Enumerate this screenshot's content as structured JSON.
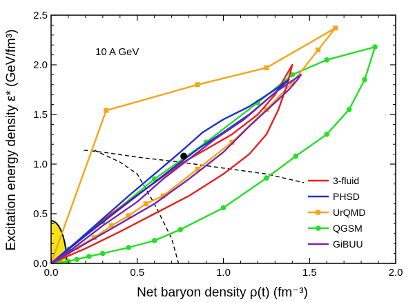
{
  "chart_data": {
    "type": "line",
    "annotation": "10 A GeV",
    "xlabel": "Net baryon density ρ(t) (fm⁻³)",
    "ylabel": "Excitation energy density ε* (GeV/fm³)",
    "xlim": [
      0.0,
      2.0
    ],
    "ylim": [
      0.0,
      2.5
    ],
    "x_ticks": [
      "0.0",
      "0.5",
      "1.0",
      "1.5",
      "2.0"
    ],
    "y_ticks": [
      "0.0",
      "0.5",
      "1.0",
      "1.5",
      "2.0",
      "2.5"
    ],
    "grid": false,
    "legend_position": "lower-right",
    "series": [
      {
        "name": "3-fluid",
        "color": "#e8211c",
        "marker": "none",
        "points": [
          [
            0.0,
            0.0
          ],
          [
            0.2,
            0.15
          ],
          [
            0.4,
            0.32
          ],
          [
            0.6,
            0.5
          ],
          [
            0.8,
            0.68
          ],
          [
            1.0,
            0.9
          ],
          [
            1.15,
            1.1
          ],
          [
            1.25,
            1.3
          ],
          [
            1.32,
            1.55
          ],
          [
            1.37,
            1.8
          ],
          [
            1.4,
            2.0
          ],
          [
            1.3,
            1.7
          ],
          [
            1.2,
            1.5
          ],
          [
            1.05,
            1.3
          ],
          [
            0.9,
            1.15
          ],
          [
            0.75,
            1.0
          ],
          [
            0.55,
            0.75
          ],
          [
            0.35,
            0.5
          ],
          [
            0.15,
            0.22
          ],
          [
            0.0,
            0.0
          ]
        ]
      },
      {
        "name": "PHSD",
        "color": "#1c2fd6",
        "marker": "none",
        "points": [
          [
            0.0,
            0.0
          ],
          [
            0.15,
            0.22
          ],
          [
            0.3,
            0.45
          ],
          [
            0.45,
            0.68
          ],
          [
            0.6,
            0.9
          ],
          [
            0.75,
            1.12
          ],
          [
            0.88,
            1.32
          ],
          [
            1.0,
            1.45
          ],
          [
            1.15,
            1.58
          ],
          [
            1.3,
            1.75
          ],
          [
            1.38,
            1.85
          ],
          [
            1.3,
            1.72
          ],
          [
            1.15,
            1.5
          ],
          [
            1.0,
            1.32
          ],
          [
            0.85,
            1.15
          ],
          [
            0.7,
            0.95
          ],
          [
            0.55,
            0.75
          ],
          [
            0.4,
            0.55
          ],
          [
            0.2,
            0.28
          ],
          [
            0.0,
            0.0
          ]
        ]
      },
      {
        "name": "UrQMD",
        "color": "#f5a516",
        "marker": "square",
        "points": [
          [
            0.0,
            0.0
          ],
          [
            0.05,
            0.05
          ],
          [
            0.1,
            0.1
          ],
          [
            0.15,
            0.16
          ],
          [
            0.25,
            0.26
          ],
          [
            0.35,
            0.38
          ],
          [
            0.45,
            0.48
          ],
          [
            0.55,
            0.6
          ],
          [
            0.65,
            0.68
          ],
          [
            0.85,
            0.95
          ],
          [
            1.05,
            1.22
          ],
          [
            1.25,
            1.55
          ],
          [
            1.4,
            1.82
          ],
          [
            1.55,
            2.15
          ],
          [
            1.65,
            2.37
          ],
          [
            1.25,
            1.97
          ],
          [
            0.85,
            1.8
          ],
          [
            0.32,
            1.54
          ],
          [
            0.0,
            0.0
          ]
        ]
      },
      {
        "name": "QGSM",
        "color": "#22e022",
        "marker": "circle",
        "points": [
          [
            0.0,
            0.0
          ],
          [
            0.05,
            0.01
          ],
          [
            0.1,
            0.02
          ],
          [
            0.15,
            0.04
          ],
          [
            0.22,
            0.07
          ],
          [
            0.3,
            0.1
          ],
          [
            0.45,
            0.16
          ],
          [
            0.6,
            0.23
          ],
          [
            0.75,
            0.34
          ],
          [
            1.0,
            0.56
          ],
          [
            1.25,
            0.86
          ],
          [
            1.42,
            1.08
          ],
          [
            1.6,
            1.3
          ],
          [
            1.73,
            1.55
          ],
          [
            1.82,
            1.85
          ],
          [
            1.88,
            2.18
          ],
          [
            1.6,
            2.05
          ],
          [
            1.4,
            1.9
          ],
          [
            1.2,
            1.62
          ],
          [
            0.9,
            1.22
          ],
          [
            0.6,
            0.85
          ],
          [
            0.3,
            0.42
          ],
          [
            0.1,
            0.14
          ],
          [
            0.0,
            0.0
          ]
        ]
      },
      {
        "name": "GiBUU",
        "color": "#7a22b8",
        "marker": "none",
        "points": [
          [
            0.0,
            0.0
          ],
          [
            0.2,
            0.2
          ],
          [
            0.4,
            0.4
          ],
          [
            0.6,
            0.6
          ],
          [
            0.8,
            0.85
          ],
          [
            1.0,
            1.12
          ],
          [
            1.15,
            1.38
          ],
          [
            1.3,
            1.62
          ],
          [
            1.38,
            1.75
          ],
          [
            1.43,
            1.85
          ],
          [
            1.45,
            1.9
          ],
          [
            1.3,
            1.72
          ],
          [
            1.12,
            1.45
          ],
          [
            0.95,
            1.25
          ],
          [
            0.8,
            1.05
          ],
          [
            0.65,
            0.85
          ],
          [
            0.5,
            0.62
          ],
          [
            0.3,
            0.38
          ],
          [
            0.12,
            0.14
          ],
          [
            0.0,
            0.0
          ]
        ]
      }
    ],
    "critical_point": {
      "x": 0.77,
      "y": 1.08
    },
    "phase_boundaries": [
      {
        "style": "dashed",
        "color": "#000000",
        "points": [
          [
            0.19,
            1.14
          ],
          [
            0.3,
            1.12
          ],
          [
            0.5,
            1.07
          ],
          [
            0.75,
            1.02
          ],
          [
            1.0,
            0.96
          ],
          [
            1.25,
            0.9
          ],
          [
            1.5,
            0.8
          ],
          [
            1.75,
            0.7
          ],
          [
            2.0,
            0.6
          ]
        ]
      },
      {
        "style": "dashed",
        "color": "#000000",
        "points": [
          [
            0.25,
            1.14
          ],
          [
            0.4,
            1.02
          ],
          [
            0.5,
            0.9
          ],
          [
            0.6,
            0.6
          ],
          [
            0.7,
            0.25
          ],
          [
            0.74,
            0.0
          ]
        ]
      }
    ],
    "hadron_region": {
      "fill": "#f5e21b",
      "edge": "#000000",
      "radius_x": 0.09,
      "radius_y": 0.43
    }
  }
}
